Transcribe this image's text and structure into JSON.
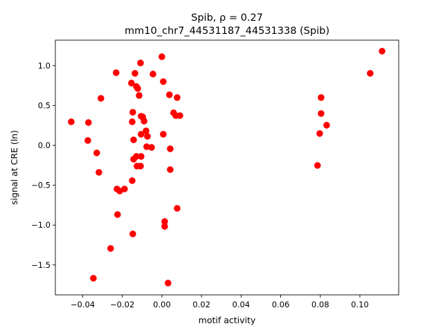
{
  "chart_data": {
    "type": "scatter",
    "title_line1": "Spib, ρ = 0.27",
    "title_line2": "mm10_chr7_44531187_44531338 (Spib)",
    "xlabel": "motif activity",
    "ylabel": "signal at CRE (ln)",
    "xlim": [
      -0.0538,
      0.1196
    ],
    "ylim": [
      -1.875,
      1.319
    ],
    "xticks": [
      -0.04,
      -0.02,
      0.0,
      0.02,
      0.04,
      0.06,
      0.08,
      0.1
    ],
    "xtick_labels": [
      "−0.04",
      "−0.02",
      "0.00",
      "0.02",
      "0.04",
      "0.06",
      "0.08",
      "0.10"
    ],
    "yticks": [
      -1.5,
      -1.0,
      -0.5,
      0.0,
      0.5,
      1.0
    ],
    "ytick_labels": [
      "−1.5",
      "−1.0",
      "−0.5",
      "0.0",
      "0.5",
      "1.0"
    ],
    "color": "#ff0000",
    "points": [
      [
        -0.0458,
        0.295
      ],
      [
        -0.0371,
        0.286
      ],
      [
        -0.0374,
        0.061
      ],
      [
        -0.0329,
        -0.095
      ],
      [
        -0.0318,
        -0.339
      ],
      [
        -0.0308,
        0.59
      ],
      [
        -0.0259,
        -1.293
      ],
      [
        -0.0346,
        -1.667
      ],
      [
        -0.0231,
        0.911
      ],
      [
        -0.0227,
        -0.547
      ],
      [
        -0.0224,
        -0.868
      ],
      [
        -0.0213,
        -0.573
      ],
      [
        -0.0189,
        -0.547
      ],
      [
        -0.015,
        -0.443
      ],
      [
        -0.0154,
        0.781
      ],
      [
        -0.0136,
        0.903
      ],
      [
        -0.0147,
        0.415
      ],
      [
        -0.015,
        0.295
      ],
      [
        -0.0143,
        0.069
      ],
      [
        -0.0143,
        -0.174
      ],
      [
        -0.0129,
        0.738
      ],
      [
        -0.0122,
        0.712
      ],
      [
        -0.0115,
        0.625
      ],
      [
        -0.0108,
        1.033
      ],
      [
        -0.0105,
        0.365
      ],
      [
        -0.0097,
        0.356
      ],
      [
        -0.009,
        0.304
      ],
      [
        -0.0105,
        0.139
      ],
      [
        -0.008,
        0.182
      ],
      [
        -0.0073,
        0.113
      ],
      [
        -0.0129,
        -0.139
      ],
      [
        -0.0105,
        -0.139
      ],
      [
        -0.0126,
        -0.26
      ],
      [
        -0.0108,
        -0.26
      ],
      [
        -0.0077,
        -0.017
      ],
      [
        -0.0052,
        -0.026
      ],
      [
        -0.0045,
        0.894
      ],
      [
        0.0,
        1.111
      ],
      [
        0.0007,
        0.799
      ],
      [
        0.0007,
        0.139
      ],
      [
        0.0014,
        -0.955
      ],
      [
        0.0014,
        -1.016
      ],
      [
        0.0031,
        -1.727
      ],
      [
        0.0038,
        0.634
      ],
      [
        0.0042,
        -0.043
      ],
      [
        0.0042,
        -0.304
      ],
      [
        0.0059,
        0.408
      ],
      [
        0.007,
        0.373
      ],
      [
        0.0077,
        0.599
      ],
      [
        0.0077,
        -0.79
      ],
      [
        0.0091,
        0.373
      ],
      [
        -0.0147,
        -1.111
      ],
      [
        0.0786,
        -0.252
      ],
      [
        0.0797,
        0.148
      ],
      [
        0.0804,
        0.599
      ],
      [
        0.0804,
        0.399
      ],
      [
        0.0832,
        0.252
      ],
      [
        0.1052,
        0.903
      ],
      [
        0.1112,
        1.181
      ]
    ]
  }
}
